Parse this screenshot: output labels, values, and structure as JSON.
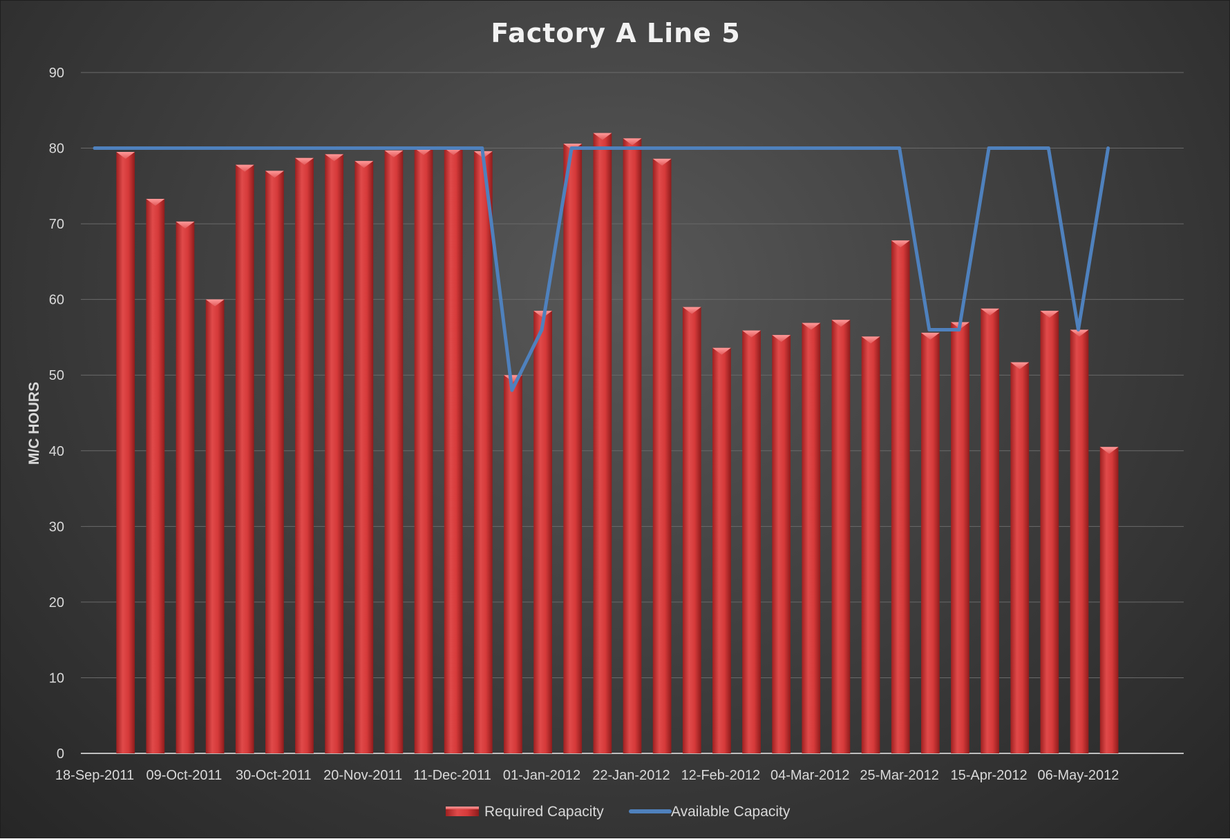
{
  "chart_data": {
    "type": "bar",
    "title": "Factory A Line 5",
    "ylabel": "M/C HOURS",
    "xlabel": "",
    "ylim": [
      0,
      90
    ],
    "yticks": [
      0,
      10,
      20,
      30,
      40,
      50,
      60,
      70,
      80,
      90
    ],
    "grid": true,
    "legend_position": "bottom",
    "categories": [
      "18-Sep-2011",
      "25-Sep-2011",
      "02-Oct-2011",
      "09-Oct-2011",
      "16-Oct-2011",
      "23-Oct-2011",
      "30-Oct-2011",
      "06-Nov-2011",
      "13-Nov-2011",
      "20-Nov-2011",
      "27-Nov-2011",
      "04-Dec-2011",
      "11-Dec-2011",
      "18-Dec-2011",
      "25-Dec-2011",
      "01-Jan-2012",
      "08-Jan-2012",
      "15-Jan-2012",
      "22-Jan-2012",
      "29-Jan-2012",
      "05-Feb-2012",
      "12-Feb-2012",
      "19-Feb-2012",
      "26-Feb-2012",
      "04-Mar-2012",
      "11-Mar-2012",
      "18-Mar-2012",
      "25-Mar-2012",
      "01-Apr-2012",
      "08-Apr-2012",
      "15-Apr-2012",
      "22-Apr-2012",
      "29-Apr-2012",
      "06-May-2012",
      "13-May-2012",
      "20-May-2012",
      "27-May-2012"
    ],
    "x_tick_labels": [
      "18-Sep-2011",
      "09-Oct-2011",
      "30-Oct-2011",
      "20-Nov-2011",
      "11-Dec-2011",
      "01-Jan-2012",
      "22-Jan-2012",
      "12-Feb-2012",
      "04-Mar-2012",
      "25-Mar-2012",
      "15-Apr-2012",
      "06-May-2012"
    ],
    "series": [
      {
        "name": "Required Capacity",
        "type": "bar",
        "color": "#d63a3a",
        "values": [
          null,
          79.5,
          73.3,
          70.3,
          60.0,
          77.8,
          77.0,
          78.7,
          79.2,
          78.3,
          79.7,
          80.0,
          80.0,
          79.6,
          50.0,
          58.5,
          80.6,
          82.0,
          81.3,
          78.6,
          59.0,
          53.6,
          55.9,
          55.3,
          56.9,
          57.3,
          55.1,
          67.8,
          55.6,
          57.0,
          58.8,
          51.7,
          58.5,
          56.0,
          40.5,
          null,
          null
        ]
      },
      {
        "name": "Available Capacity",
        "type": "line",
        "color": "#4f81bd",
        "values": [
          80,
          80,
          80,
          80,
          80,
          80,
          80,
          80,
          80,
          80,
          80,
          80,
          80,
          80,
          48,
          56,
          80,
          80,
          80,
          80,
          80,
          80,
          80,
          80,
          80,
          80,
          80,
          80,
          56,
          56,
          80,
          80,
          80,
          56,
          80,
          null,
          null
        ]
      }
    ]
  }
}
